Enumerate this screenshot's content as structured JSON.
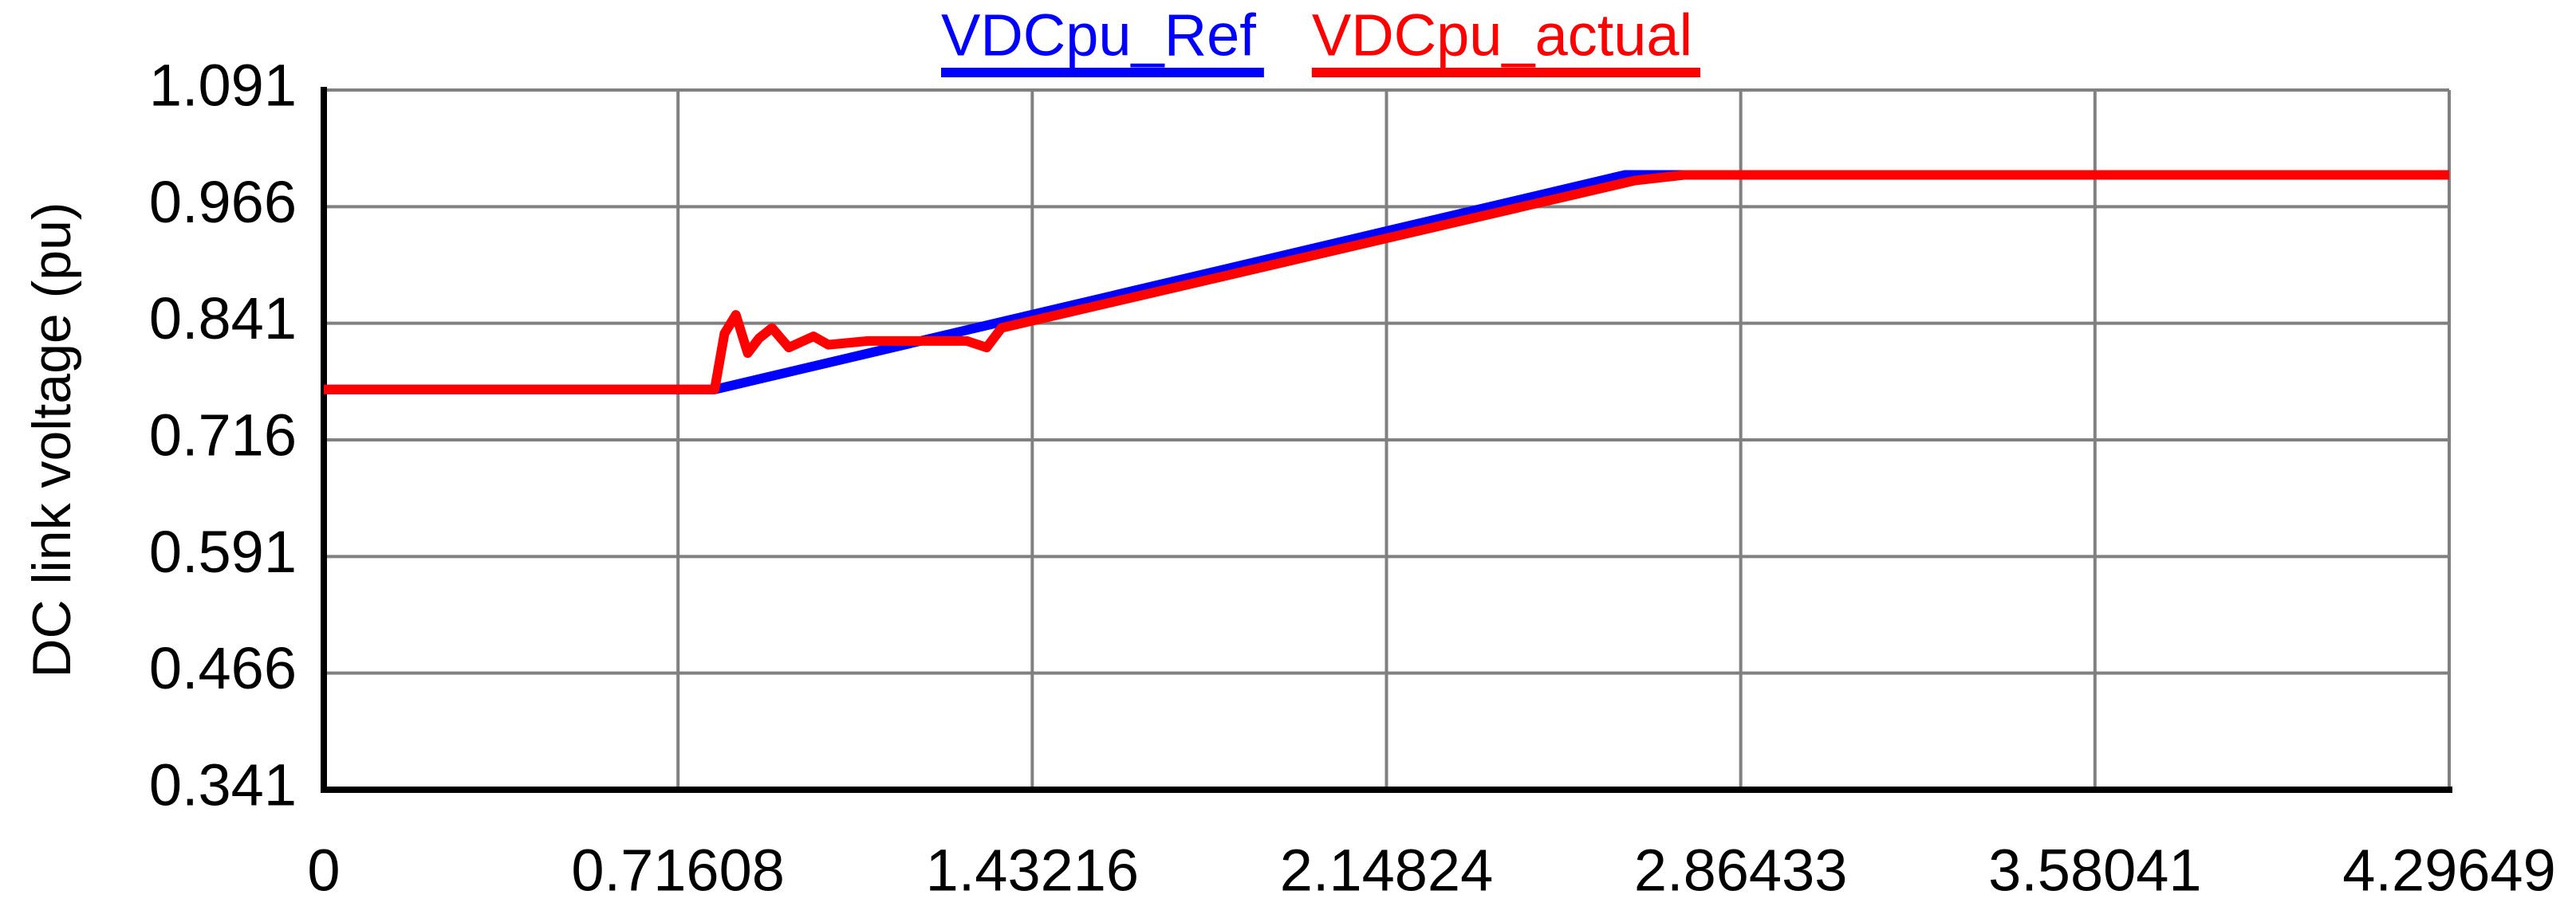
{
  "chart_data": {
    "type": "line",
    "y_label": "DC link voltage (pu)",
    "xlim": [
      0,
      4.29649
    ],
    "xticks": [
      0,
      0.71608,
      1.43216,
      2.14824,
      2.86433,
      3.58041,
      4.29649
    ],
    "ylim": [
      0.341,
      1.091
    ],
    "yticks": [
      0.341,
      0.466,
      0.591,
      0.716,
      0.841,
      0.966,
      1.091
    ],
    "grid": true,
    "legend": "top",
    "series": [
      {
        "name": "VDCpu_Ref",
        "color": "#0000ff",
        "x": [
          0,
          0.79,
          2.63,
          4.29649
        ],
        "values": [
          0.77,
          0.77,
          1.0,
          1.0
        ]
      },
      {
        "name": "VDCpu_actual",
        "color": "#ff0000",
        "x": [
          0,
          0.79,
          0.81,
          0.833,
          0.857,
          0.88,
          0.906,
          0.94,
          0.99,
          1.02,
          1.1,
          1.3,
          1.34,
          1.37,
          2.65,
          2.75,
          4.29649
        ],
        "values": [
          0.77,
          0.77,
          0.83,
          0.85,
          0.809,
          0.825,
          0.836,
          0.815,
          0.827,
          0.818,
          0.822,
          0.822,
          0.815,
          0.836,
          0.994,
          1.0,
          1.0
        ]
      }
    ]
  }
}
